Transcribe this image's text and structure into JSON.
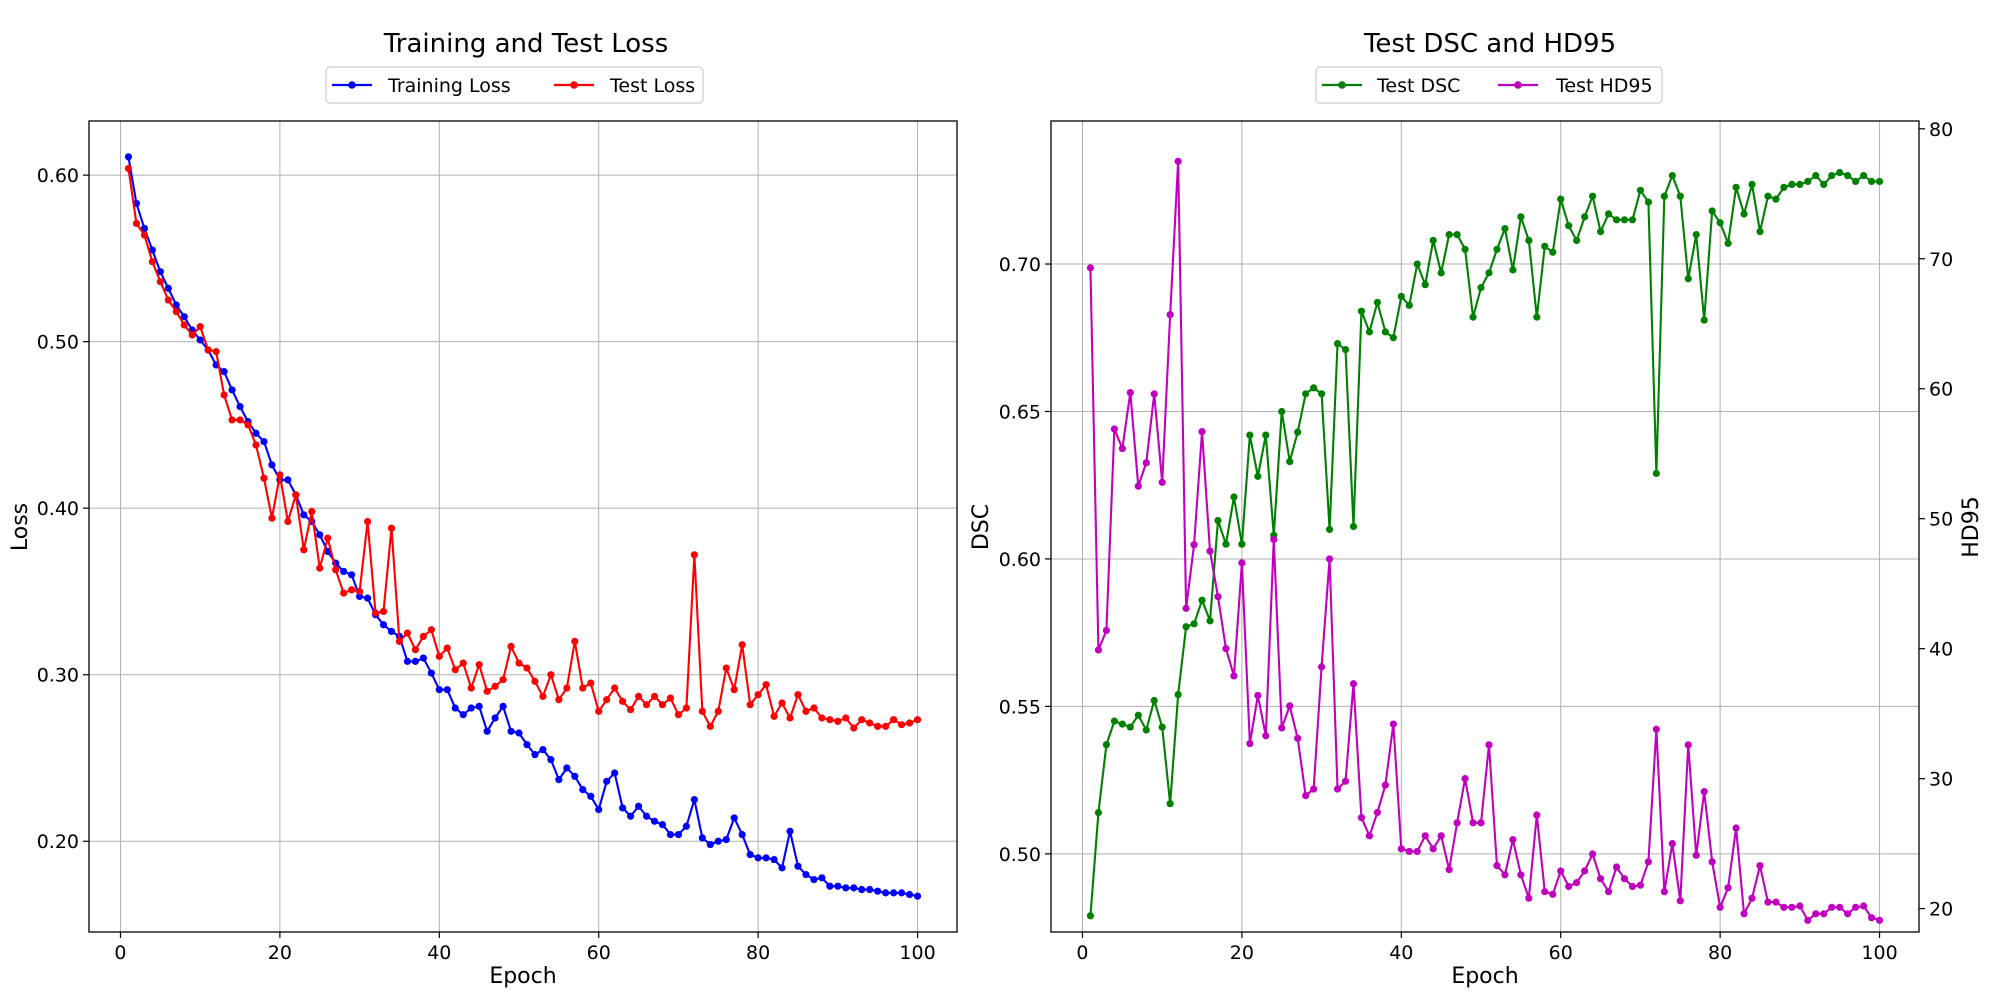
{
  "chart_data": [
    {
      "type": "line",
      "title": "Training and Test Loss",
      "xlabel": "Epoch",
      "ylabel": "Loss",
      "xlim": [
        -3.95,
        104.95
      ],
      "ylim": [
        0.1455,
        0.6325
      ],
      "xticks": [
        0,
        20,
        40,
        60,
        80,
        100
      ],
      "yticks": [
        0.2,
        0.3,
        0.4,
        0.5,
        0.6
      ],
      "xtick_labels": [
        "0",
        "20",
        "40",
        "60",
        "80",
        "100"
      ],
      "ytick_labels": [
        "0.20",
        "0.30",
        "0.40",
        "0.50",
        "0.60"
      ],
      "grid": true,
      "legend_position": "top-center",
      "series": [
        {
          "name": "Training Loss",
          "color": "#0000ff",
          "marker": "circle",
          "values": [
            0.611,
            0.583,
            0.568,
            0.555,
            0.542,
            0.532,
            0.522,
            0.515,
            0.507,
            0.501,
            0.495,
            0.486,
            0.482,
            0.471,
            0.461,
            0.452,
            0.445,
            0.44,
            0.426,
            0.417,
            0.417,
            0.408,
            0.396,
            0.392,
            0.384,
            0.374,
            0.367,
            0.362,
            0.36,
            0.347,
            0.346,
            0.336,
            0.33,
            0.326,
            0.323,
            0.308,
            0.308,
            0.31,
            0.301,
            0.291,
            0.291,
            0.28,
            0.276,
            0.28,
            0.281,
            0.266,
            0.274,
            0.281,
            0.266,
            0.265,
            0.258,
            0.252,
            0.255,
            0.249,
            0.237,
            0.244,
            0.239,
            0.231,
            0.227,
            0.219,
            0.236,
            0.241,
            0.22,
            0.215,
            0.221,
            0.215,
            0.212,
            0.21,
            0.204,
            0.204,
            0.209,
            0.225,
            0.202,
            0.198,
            0.2,
            0.201,
            0.214,
            0.204,
            0.192,
            0.19,
            0.19,
            0.189,
            0.184,
            0.206,
            0.185,
            0.18,
            0.177,
            0.178,
            0.173,
            0.173,
            0.172,
            0.172,
            0.171,
            0.171,
            0.17,
            0.169,
            0.169,
            0.169,
            0.168,
            0.167
          ]
        },
        {
          "name": "Test Loss",
          "color": "#ff0000",
          "marker": "circle",
          "values": [
            0.604,
            0.571,
            0.564,
            0.548,
            0.536,
            0.525,
            0.518,
            0.51,
            0.504,
            0.509,
            0.495,
            0.494,
            0.468,
            0.453,
            0.453,
            0.45,
            0.438,
            0.418,
            0.394,
            0.42,
            0.392,
            0.408,
            0.375,
            0.398,
            0.364,
            0.382,
            0.363,
            0.349,
            0.351,
            0.35,
            0.392,
            0.337,
            0.338,
            0.388,
            0.32,
            0.325,
            0.315,
            0.323,
            0.327,
            0.311,
            0.316,
            0.303,
            0.307,
            0.292,
            0.306,
            0.29,
            0.293,
            0.297,
            0.317,
            0.307,
            0.304,
            0.296,
            0.287,
            0.3,
            0.285,
            0.292,
            0.32,
            0.292,
            0.295,
            0.278,
            0.285,
            0.292,
            0.284,
            0.279,
            0.287,
            0.282,
            0.287,
            0.282,
            0.286,
            0.276,
            0.28,
            0.372,
            0.278,
            0.269,
            0.278,
            0.304,
            0.291,
            0.318,
            0.282,
            0.288,
            0.294,
            0.275,
            0.283,
            0.274,
            0.288,
            0.278,
            0.28,
            0.274,
            0.273,
            0.272,
            0.274,
            0.268,
            0.273,
            0.271,
            0.269,
            0.269,
            0.273,
            0.27,
            0.271,
            0.273
          ]
        }
      ]
    },
    {
      "type": "line",
      "title": "Test DSC and HD95",
      "xlabel": "Epoch",
      "ylabel": "DSC",
      "ylabel_right": "HD95",
      "xlim": [
        -3.95,
        104.95
      ],
      "ylim": [
        0.4735,
        0.7485
      ],
      "ylim_right": [
        18.2,
        80.6
      ],
      "xticks": [
        0,
        20,
        40,
        60,
        80,
        100
      ],
      "yticks": [
        0.5,
        0.55,
        0.6,
        0.65,
        0.7
      ],
      "yticks_right": [
        20,
        30,
        40,
        50,
        60,
        70,
        80
      ],
      "xtick_labels": [
        "0",
        "20",
        "40",
        "60",
        "80",
        "100"
      ],
      "ytick_labels": [
        "0.50",
        "0.55",
        "0.60",
        "0.65",
        "0.70"
      ],
      "ytick_labels_right": [
        "20",
        "30",
        "40",
        "50",
        "60",
        "70",
        "80"
      ],
      "grid": true,
      "legend_position": "top-center",
      "series": [
        {
          "name": "Test DSC",
          "color": "#008000",
          "marker": "circle",
          "axis": "left",
          "values": [
            0.479,
            0.514,
            0.537,
            0.545,
            0.544,
            0.543,
            0.547,
            0.542,
            0.552,
            0.543,
            0.517,
            0.554,
            0.577,
            0.578,
            0.586,
            0.579,
            0.613,
            0.605,
            0.621,
            0.605,
            0.642,
            0.628,
            0.642,
            0.608,
            0.65,
            0.633,
            0.643,
            0.656,
            0.658,
            0.656,
            0.61,
            0.673,
            0.671,
            0.611,
            0.684,
            0.677,
            0.687,
            0.677,
            0.675,
            0.689,
            0.686,
            0.7,
            0.693,
            0.708,
            0.697,
            0.71,
            0.71,
            0.705,
            0.682,
            0.692,
            0.697,
            0.705,
            0.712,
            0.698,
            0.716,
            0.708,
            0.682,
            0.706,
            0.704,
            0.722,
            0.713,
            0.708,
            0.716,
            0.723,
            0.711,
            0.717,
            0.715,
            0.715,
            0.715,
            0.725,
            0.721,
            0.629,
            0.723,
            0.73,
            0.723,
            0.695,
            0.71,
            0.681,
            0.718,
            0.714,
            0.707,
            0.726,
            0.717,
            0.727,
            0.711,
            0.723,
            0.722,
            0.726,
            0.727,
            0.727,
            0.728,
            0.73,
            0.727,
            0.73,
            0.731,
            0.73,
            0.728,
            0.73,
            0.728,
            0.728
          ]
        },
        {
          "name": "Test HD95",
          "color": "#bf00bf",
          "marker": "circle",
          "axis": "right",
          "values": [
            69.3,
            39.9,
            41.4,
            56.9,
            55.4,
            59.7,
            52.5,
            54.3,
            59.6,
            52.8,
            65.7,
            77.5,
            43.1,
            48.0,
            56.7,
            47.5,
            44.0,
            40.0,
            37.9,
            46.6,
            32.7,
            36.4,
            33.3,
            48.4,
            33.9,
            35.6,
            33.1,
            28.7,
            29.2,
            38.6,
            46.9,
            29.2,
            29.8,
            37.3,
            27.0,
            25.6,
            27.4,
            29.5,
            34.2,
            24.6,
            24.4,
            24.4,
            25.6,
            24.6,
            25.6,
            23.0,
            26.6,
            30.0,
            26.6,
            26.6,
            32.6,
            23.3,
            22.6,
            25.3,
            22.6,
            20.8,
            27.2,
            21.3,
            21.1,
            22.9,
            21.7,
            22.0,
            22.9,
            24.2,
            22.3,
            21.3,
            23.2,
            22.3,
            21.7,
            21.8,
            23.6,
            33.8,
            21.3,
            25.0,
            20.6,
            32.6,
            24.1,
            29.0,
            23.6,
            20.1,
            21.6,
            26.2,
            19.6,
            20.8,
            23.3,
            20.5,
            20.5,
            20.1,
            20.1,
            20.2,
            19.1,
            19.6,
            19.6,
            20.1,
            20.1,
            19.6,
            20.1,
            20.2,
            19.3,
            19.1
          ]
        }
      ]
    }
  ]
}
